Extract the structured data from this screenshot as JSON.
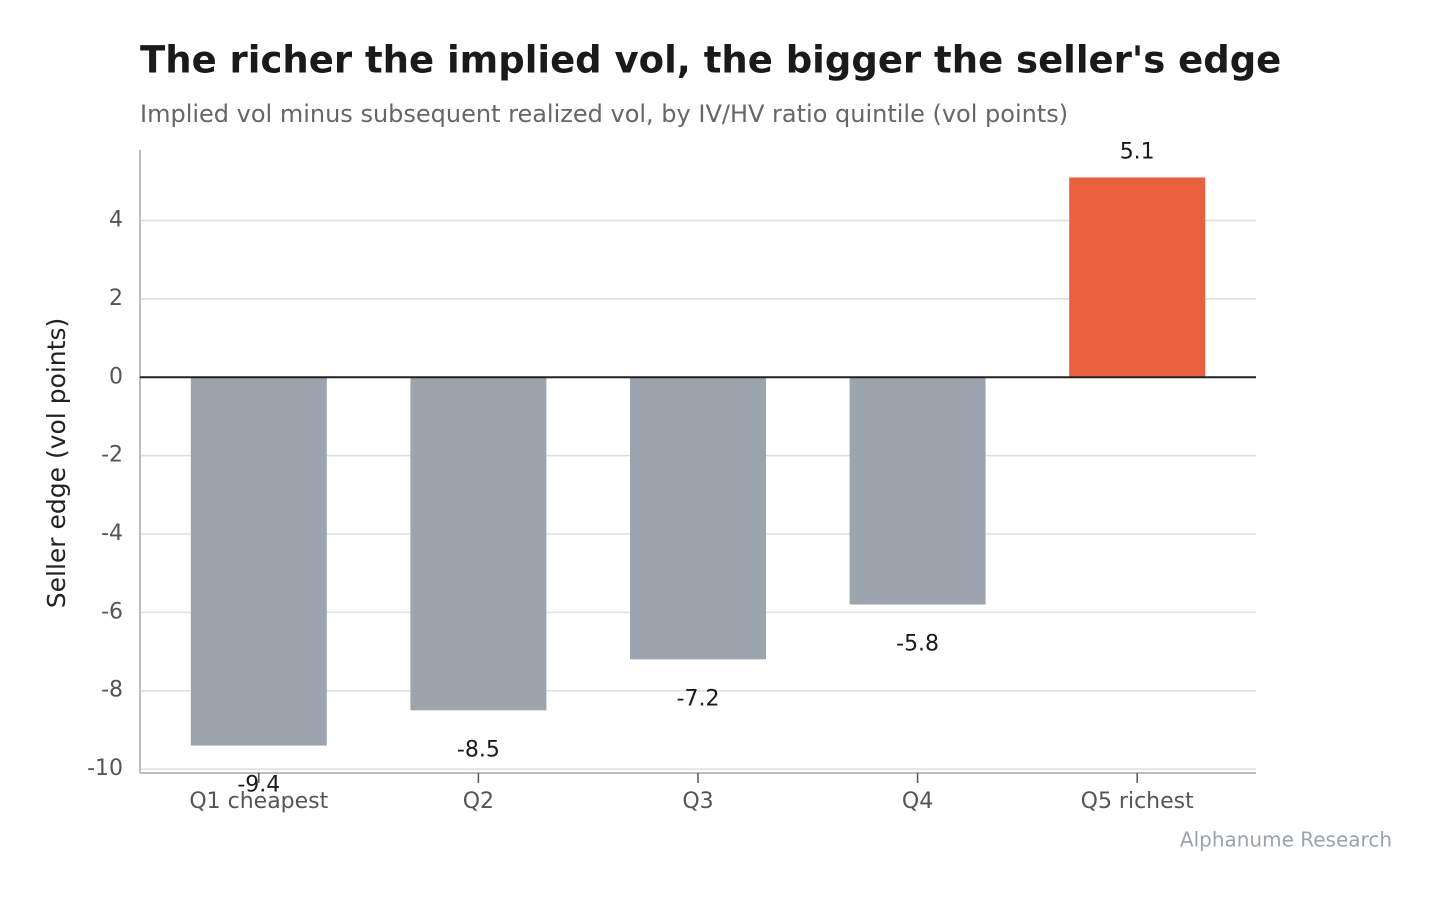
{
  "chart_data": {
    "type": "bar",
    "title": "The richer the implied vol, the bigger the seller's edge",
    "subtitle": "Implied vol minus subsequent realized vol, by IV/HV ratio quintile (vol points)",
    "y_label": "Seller edge (vol points)",
    "source": "Alphanume Research",
    "categories": [
      "Q1 cheapest",
      "Q2",
      "Q3",
      "Q4",
      "Q5 richest"
    ],
    "values": [
      -9.4,
      -8.5,
      -7.2,
      -5.8,
      5.1
    ],
    "colors": [
      "#9ca5ad",
      "#9ca5ad",
      "#9ca5ad",
      "#9ca5ad",
      "#e8603e"
    ],
    "ylim": [
      -10.1,
      5.8
    ],
    "yticks": [
      -10,
      -8,
      -6,
      -4,
      -2,
      0,
      2,
      4
    ],
    "grid": true
  }
}
